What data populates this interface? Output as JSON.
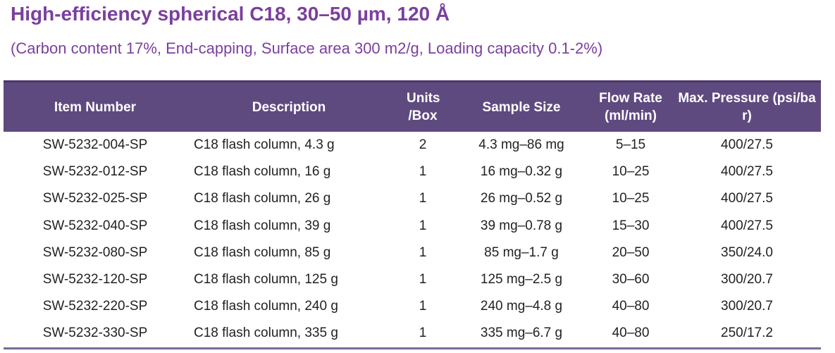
{
  "header": {
    "title": "High-efficiency spherical C18, 30–50 µm, 120 Å",
    "subtitle": "(Carbon content 17%, End-capping, Surface area 300 m2/g, Loading capacity 0.1-2%)"
  },
  "table": {
    "columns": [
      "Item Number",
      "Description",
      "Units /Box",
      "Sample Size",
      "Flow Rate (ml/min)",
      "Max. Pressure (psi/bar)"
    ],
    "rows": [
      [
        "SW-5232-004-SP",
        "C18 flash column, 4.3 g",
        "2",
        "4.3 mg–86 mg",
        "5–15",
        "400/27.5"
      ],
      [
        "SW-5232-012-SP",
        "C18 flash column, 16 g",
        "1",
        "16 mg–0.32 g",
        "10–25",
        "400/27.5"
      ],
      [
        "SW-5232-025-SP",
        "C18 flash column, 26 g",
        "1",
        "26 mg–0.52 g",
        "10–25",
        "400/27.5"
      ],
      [
        "SW-5232-040-SP",
        "C18 flash column, 39 g",
        "1",
        "39 mg–0.78 g",
        "15–30",
        "400/27.5"
      ],
      [
        "SW-5232-080-SP",
        "C18 flash column, 85 g",
        "1",
        "85 mg–1.7 g",
        "20–50",
        "350/24.0"
      ],
      [
        "SW-5232-120-SP",
        "C18 flash column, 125 g",
        "1",
        "125 mg–2.5 g",
        "30–60",
        "300/20.7"
      ],
      [
        "SW-5232-220-SP",
        "C18 flash column, 240 g",
        "1",
        "240 mg–4.8 g",
        "40–80",
        "300/20.7"
      ],
      [
        "SW-5232-330-SP",
        "C18 flash column, 335 g",
        "1",
        "335 mg–6.7 g",
        "40–80",
        "250/17.2"
      ]
    ]
  }
}
